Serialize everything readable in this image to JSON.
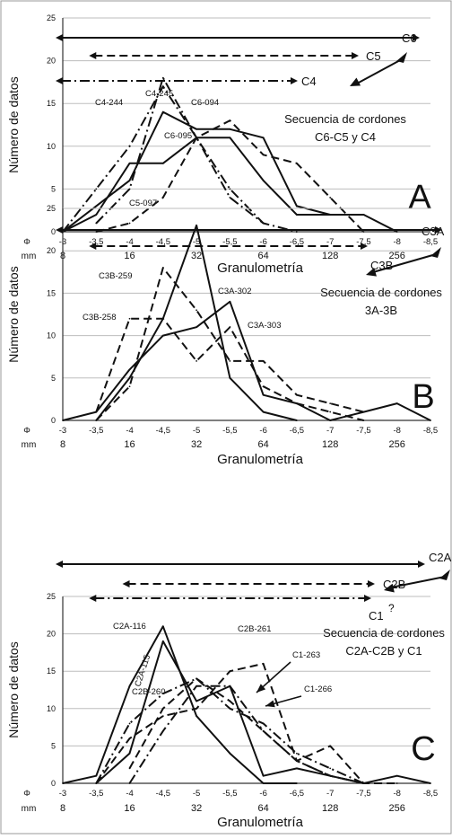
{
  "figure": {
    "x_phi_label": "Φ",
    "x_mm_label": "mm",
    "xlabel": "Granulometría",
    "ylabel": "Número de datos"
  },
  "chart_data": [
    {
      "type": "line",
      "panel_letter": "A",
      "subtitle_line1": "Secuencia de cordones",
      "subtitle_line2": "C6-C5 y C4",
      "xlabel": "Granulometría",
      "ylabel": "Número de datos",
      "x_phi_ticks": [
        "-3",
        "-3,5",
        "-4",
        "-4,5",
        "-5",
        "-5,5",
        "-6",
        "-6,5",
        "-7",
        "-7,5",
        "-8",
        "-8,5"
      ],
      "x_mm_ticks": [
        "8",
        "16",
        "32",
        "64",
        "128",
        "256"
      ],
      "ylim": [
        0,
        25
      ],
      "yticks": [
        0,
        5,
        10,
        15,
        20,
        25
      ],
      "grid": "horizontal",
      "series": [
        {
          "name": "C6-094",
          "style": "solid",
          "x": [
            -3,
            -3.5,
            -4,
            -4.5,
            -5,
            -5.5,
            -6,
            -6.5,
            -7,
            -7.5
          ],
          "y": [
            0,
            3,
            6,
            14,
            12,
            12,
            11,
            3,
            2,
            2
          ]
        },
        {
          "name": "C6-095",
          "style": "solid",
          "x": [
            -3,
            -3.5,
            -4,
            -4.5,
            -5,
            -5.5,
            -6,
            -6.5,
            -7,
            -7.5,
            -8
          ],
          "y": [
            0,
            2,
            8,
            8,
            11,
            11,
            6,
            2,
            2,
            2,
            0
          ]
        },
        {
          "name": "C5-097",
          "style": "dashed",
          "x": [
            -3.5,
            -4,
            -4.5,
            -5,
            -5.5,
            -6,
            -6.5,
            -7,
            -7.5
          ],
          "y": [
            0,
            1,
            4,
            11,
            13,
            9,
            8,
            4,
            0
          ]
        },
        {
          "name": "C4-244",
          "style": "dash-dot",
          "x": [
            -3,
            -3.5,
            -4,
            -4.5,
            -5,
            -5.5,
            -6
          ],
          "y": [
            0,
            5,
            10,
            17,
            11,
            5,
            1
          ]
        },
        {
          "name": "C4-245",
          "style": "dash-dot",
          "x": [
            -3.5,
            -4,
            -4.5,
            -5,
            -5.5,
            -6,
            -6.5
          ],
          "y": [
            1,
            5,
            18,
            11,
            4,
            1,
            0
          ]
        }
      ],
      "ranges": [
        {
          "label": "C6",
          "style": "solid",
          "from": -3,
          "to": -8.5
        },
        {
          "label": "C5",
          "style": "dashed",
          "from": -3.5,
          "to": -7.5
        },
        {
          "label": "C4",
          "style": "dash-dot",
          "from": -3,
          "to": -6.5
        }
      ]
    },
    {
      "type": "line",
      "panel_letter": "B",
      "subtitle_line1": "Secuencia de cordones",
      "subtitle_line2": "3A-3B",
      "xlabel": "Granulometría",
      "ylabel": "Número de datos",
      "x_phi_ticks": [
        "-3",
        "-3,5",
        "-4",
        "-4,5",
        "-5",
        "-5,5",
        "-6",
        "-6,5",
        "-7",
        "-7,5",
        "-8",
        "-8,5"
      ],
      "x_mm_ticks": [
        "8",
        "16",
        "32",
        "64",
        "128",
        "256"
      ],
      "ylim": [
        0,
        25
      ],
      "yticks": [
        0,
        5,
        10,
        15,
        20,
        25
      ],
      "grid": "horizontal",
      "series": [
        {
          "name": "C3A-302",
          "style": "solid",
          "x": [
            -3.5,
            -4,
            -4.5,
            -5,
            -5.5,
            -6,
            -6.5
          ],
          "y": [
            0,
            5,
            12,
            23,
            5,
            1,
            0
          ]
        },
        {
          "name": "C3A-303",
          "style": "solid",
          "x": [
            -3,
            -3.5,
            -4,
            -4.5,
            -5,
            -5.5,
            -6,
            -6.5,
            -7,
            -7.5,
            -8,
            -8.5
          ],
          "y": [
            0,
            1,
            6,
            10,
            11,
            14,
            3,
            2,
            0,
            1,
            2,
            0
          ]
        },
        {
          "name": "C3B-258",
          "style": "dashed",
          "x": [
            -3.5,
            -4,
            -4.5,
            -5,
            -5.5,
            -6,
            -6.5,
            -7,
            -7.5
          ],
          "y": [
            1,
            12,
            12,
            7,
            11,
            4,
            2,
            1,
            0
          ]
        },
        {
          "name": "C3B-259",
          "style": "dashed",
          "x": [
            -3.5,
            -4,
            -4.5,
            -5,
            -5.5,
            -6,
            -6.5,
            -7,
            -7.5
          ],
          "y": [
            0,
            4,
            18,
            13,
            7,
            7,
            3,
            2,
            1
          ]
        }
      ],
      "ranges": [
        {
          "label": "C3A",
          "style": "solid",
          "from": -3,
          "to": -8.5
        },
        {
          "label": "C3B",
          "style": "dashed",
          "from": -3.5,
          "to": -7.5
        }
      ]
    },
    {
      "type": "line",
      "panel_letter": "C",
      "subtitle_line1": "Secuencia de cordones",
      "subtitle_line2": "C2A-C2B y C1",
      "xlabel": "Granulometría",
      "ylabel": "Número de datos",
      "x_phi_ticks": [
        "-3",
        "-3,5",
        "-4",
        "-4,5",
        "-5",
        "-5,5",
        "-6",
        "-6,5",
        "-7",
        "-7,5",
        "-8",
        "-8,5"
      ],
      "x_mm_ticks": [
        "8",
        "16",
        "32",
        "64",
        "128",
        "256"
      ],
      "ylim": [
        0,
        25
      ],
      "yticks": [
        0,
        5,
        10,
        15,
        20,
        25
      ],
      "grid": "horizontal",
      "series": [
        {
          "name": "C2A-116",
          "style": "solid",
          "x": [
            -3,
            -3.5,
            -4,
            -4.5,
            -5,
            -5.5,
            -6,
            -6.5
          ],
          "y": [
            0,
            1,
            13,
            21,
            9,
            4,
            0,
            0
          ]
        },
        {
          "name": "C2A-115",
          "style": "solid",
          "x": [
            -3.5,
            -4,
            -4.5,
            -5,
            -5.5,
            -6,
            -6.5,
            -7,
            -7.5,
            -8,
            -8.5
          ],
          "y": [
            0,
            4,
            19,
            11,
            13,
            1,
            2,
            1,
            0,
            1,
            0
          ]
        },
        {
          "name": "C2B-260",
          "style": "dashed",
          "x": [
            -4,
            -4.5,
            -5,
            -5.5,
            -6,
            -6.5,
            -7,
            -7.5
          ],
          "y": [
            2,
            10,
            14,
            11,
            7,
            3,
            1,
            0
          ]
        },
        {
          "name": "C2B-261",
          "style": "dashed",
          "x": [
            -3.5,
            -4,
            -4.5,
            -5,
            -5.5,
            -6,
            -6.5,
            -7,
            -7.5,
            -8
          ],
          "y": [
            0,
            6,
            9,
            10,
            15,
            16,
            3,
            5,
            0,
            0
          ]
        },
        {
          "name": "C1-263",
          "style": "dash-dot",
          "x": [
            -3.5,
            -4,
            -4.5,
            -5,
            -5.5,
            -6,
            -6.5,
            -7,
            -7.5
          ],
          "y": [
            0,
            8,
            12,
            14,
            10,
            8,
            4,
            2,
            0
          ]
        },
        {
          "name": "C1-266",
          "style": "dash-dot",
          "x": [
            -4,
            -4.5,
            -5,
            -5.5,
            -6,
            -6.5,
            -7,
            -7.5
          ],
          "y": [
            0,
            7,
            13,
            13,
            7,
            3,
            1,
            0
          ]
        }
      ],
      "ranges": [
        {
          "label": "C2A",
          "style": "solid",
          "from": -3,
          "to": -8.5
        },
        {
          "label": "C2B",
          "style": "dashed",
          "from": -4,
          "to": -7.5
        },
        {
          "label": "C1",
          "style": "dash-dot",
          "from": -3.5,
          "to": -7.5,
          "suffix": "?"
        }
      ]
    }
  ]
}
